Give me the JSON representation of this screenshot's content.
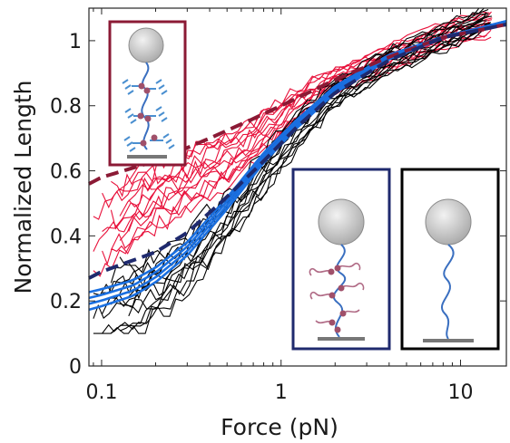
{
  "chart_data": {
    "type": "line",
    "xlabel": "Force (pN)",
    "ylabel": "Normalized Length",
    "xscale": "log",
    "xlim": [
      0.085,
      18
    ],
    "ylim": [
      0,
      1.1
    ],
    "x_ticks": [
      {
        "value": 0.1,
        "label": "0.1"
      },
      {
        "value": 1,
        "label": "1"
      },
      {
        "value": 10,
        "label": "10"
      }
    ],
    "y_ticks": [
      {
        "value": 0,
        "label": "0"
      },
      {
        "value": 0.2,
        "label": "0.2"
      },
      {
        "value": 0.4,
        "label": "0.4"
      },
      {
        "value": 0.6,
        "label": "0.6"
      },
      {
        "value": 0.8,
        "label": "0.8"
      },
      {
        "value": 1,
        "label": "1"
      }
    ],
    "grid": false,
    "legend": "none",
    "colors": {
      "red_traces": "#e8103a",
      "black_traces": "#000000",
      "blue_traces": "#1a6fe0",
      "red_fit": "#8b1a35",
      "navy_fit": "#1f2a6e"
    },
    "series": [
      {
        "style": "red-traces",
        "x": [
          0.09,
          0.12,
          0.16,
          0.2,
          0.3,
          0.5,
          0.8,
          1.2,
          2,
          4,
          8,
          15
        ],
        "y": [
          0.42,
          0.46,
          0.5,
          0.53,
          0.58,
          0.64,
          0.72,
          0.8,
          0.88,
          0.95,
          1.02,
          1.06
        ]
      },
      {
        "style": "black-traces",
        "x": [
          0.09,
          0.12,
          0.16,
          0.2,
          0.3,
          0.5,
          0.8,
          1.2,
          2,
          4,
          8,
          15
        ],
        "y": [
          0.18,
          0.2,
          0.22,
          0.25,
          0.33,
          0.46,
          0.6,
          0.72,
          0.84,
          0.94,
          1.01,
          1.08
        ]
      },
      {
        "style": "blue-fit",
        "x": [
          0.085,
          0.1,
          0.15,
          0.2,
          0.3,
          0.5,
          0.8,
          1.2,
          2,
          4,
          8,
          18
        ],
        "y": [
          0.2,
          0.21,
          0.24,
          0.28,
          0.36,
          0.5,
          0.64,
          0.74,
          0.85,
          0.95,
          1.01,
          1.06
        ]
      },
      {
        "style": "red-dashed-fit",
        "x": [
          0.085,
          0.1,
          0.2,
          0.4,
          0.7,
          1,
          2,
          4,
          8,
          18
        ],
        "y": [
          0.56,
          0.58,
          0.63,
          0.7,
          0.76,
          0.8,
          0.88,
          0.95,
          1.01,
          1.05
        ]
      },
      {
        "style": "navy-dashed-fit",
        "x": [
          0.085,
          0.1,
          0.2,
          0.3,
          0.5,
          0.8,
          1.2,
          2,
          4,
          8,
          18
        ],
        "y": [
          0.27,
          0.29,
          0.35,
          0.41,
          0.52,
          0.63,
          0.73,
          0.84,
          0.94,
          1.01,
          1.05
        ]
      }
    ]
  }
}
